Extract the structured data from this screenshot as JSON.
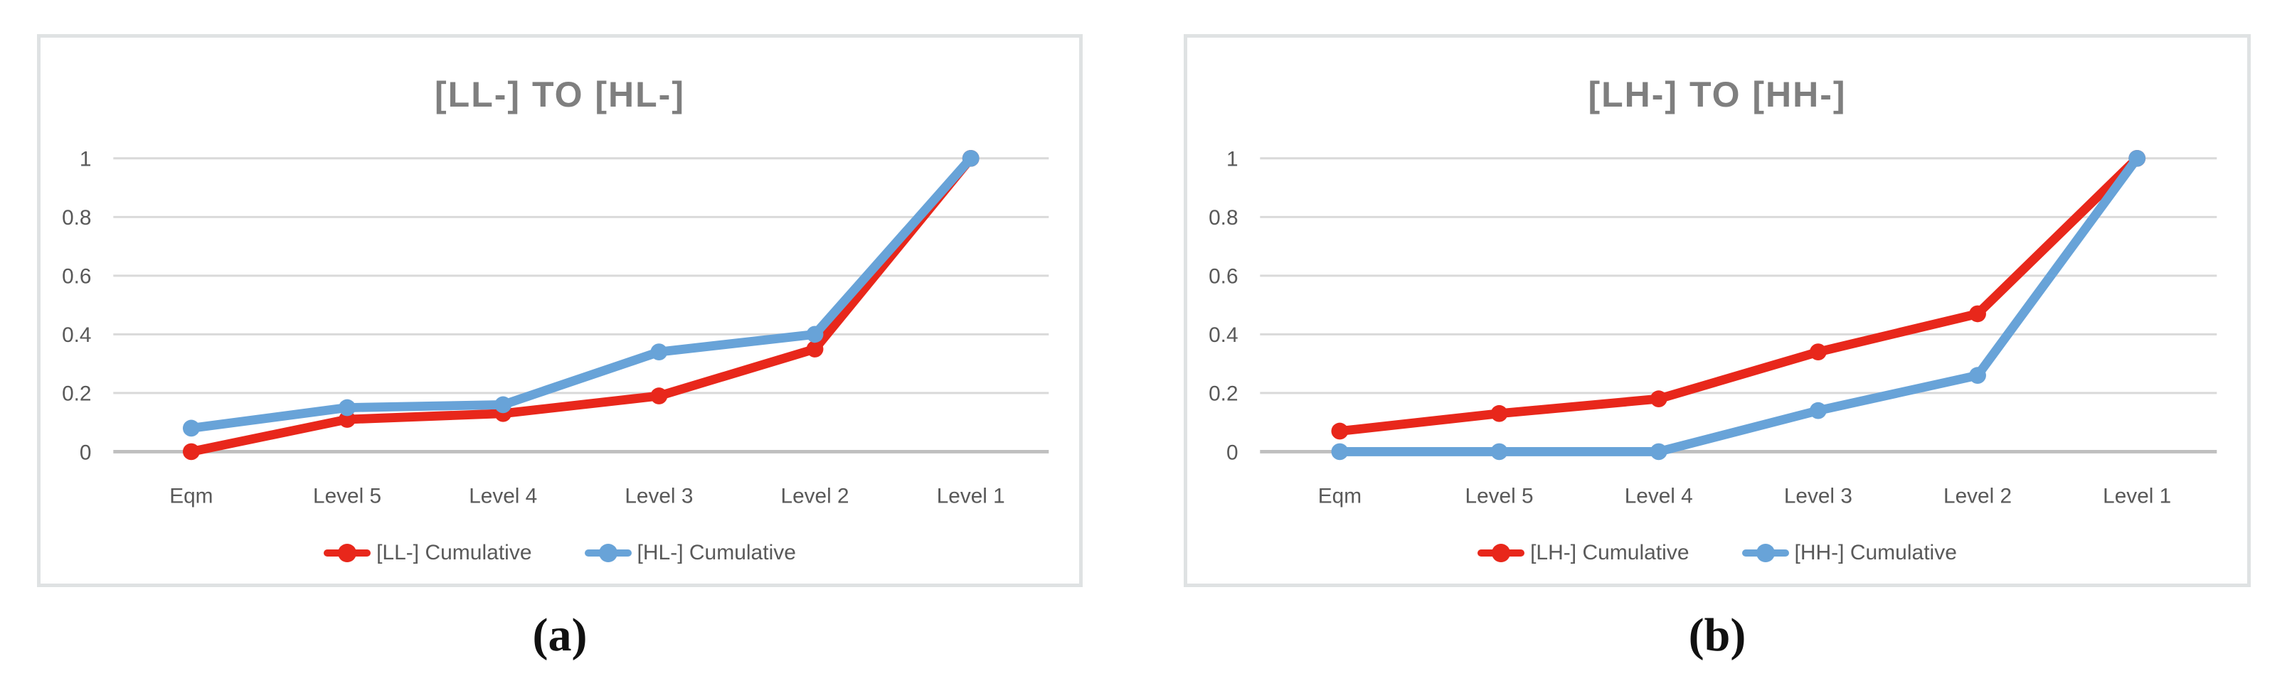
{
  "captions": [
    "(a)",
    "(b)"
  ],
  "colors": {
    "series_red": "#e8271b",
    "series_blue": "#68a3d8",
    "gridline": "#d9d9d9",
    "axis_zero_line": "#bfbfbf",
    "title_gray": "#7f7f7f",
    "tick_gray": "#595959",
    "panel_border": "#dfe2e3",
    "caption_black": "#111111"
  },
  "chart_data": [
    {
      "type": "line",
      "title": "[LL-] TO [HL-]",
      "categories": [
        "Eqm",
        "Level 5",
        "Level 4",
        "Level 3",
        "Level 2",
        "Level 1"
      ],
      "y_ticks": [
        "0",
        "0.2",
        "0.4",
        "0.6",
        "0.8",
        "1"
      ],
      "ylim": [
        0,
        1
      ],
      "grid": true,
      "legend_position": "bottom",
      "series": [
        {
          "name": "[LL-] Cumulative",
          "color": "#e8271b",
          "values": [
            0.0,
            0.11,
            0.13,
            0.19,
            0.35,
            1.0
          ]
        },
        {
          "name": "[HL-] Cumulative",
          "color": "#68a3d8",
          "values": [
            0.08,
            0.15,
            0.16,
            0.34,
            0.4,
            1.0
          ]
        }
      ]
    },
    {
      "type": "line",
      "title": "[LH-] TO [HH-]",
      "categories": [
        "Eqm",
        "Level 5",
        "Level 4",
        "Level 3",
        "Level 2",
        "Level 1"
      ],
      "y_ticks": [
        "0",
        "0.2",
        "0.4",
        "0.6",
        "0.8",
        "1"
      ],
      "ylim": [
        0,
        1
      ],
      "grid": true,
      "legend_position": "bottom",
      "series": [
        {
          "name": "[LH-] Cumulative",
          "color": "#e8271b",
          "values": [
            0.07,
            0.13,
            0.18,
            0.34,
            0.47,
            1.0
          ]
        },
        {
          "name": "[HH-] Cumulative",
          "color": "#68a3d8",
          "values": [
            0.0,
            0.0,
            0.0,
            0.14,
            0.26,
            1.0
          ]
        }
      ]
    }
  ]
}
